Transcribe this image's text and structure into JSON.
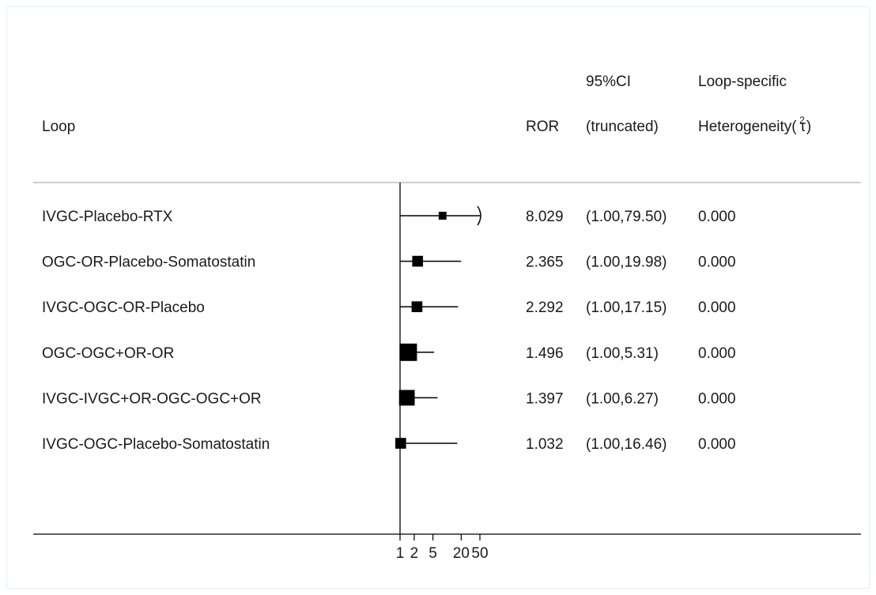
{
  "chart_data": {
    "type": "forest",
    "headers": {
      "loop": "Loop",
      "ror": "ROR",
      "ci_line1": "95%CI",
      "ci_line2": "(truncated)",
      "het_line1": "Loop-specific",
      "het_line2": "Heterogeneity(",
      "het_symbol": "τ",
      "het_sup": "2",
      "het_close": ")"
    },
    "x_axis": {
      "scale": "log",
      "ticks": [
        1,
        2,
        5,
        20,
        50
      ],
      "tick_labels": [
        "1",
        "2",
        "5",
        "20",
        "50"
      ],
      "range": [
        1,
        50
      ]
    },
    "rows": [
      {
        "loop": "IVGC-Placebo-RTX",
        "ror": 8.029,
        "ror_label": "8.029",
        "ci_low": 1.0,
        "ci_high": 79.5,
        "ci_label": "(1.00,79.50)",
        "heterogeneity": "0.000",
        "weight": 0.45,
        "arrow": true
      },
      {
        "loop": "OGC-OR-Placebo-Somatostatin",
        "ror": 2.365,
        "ror_label": "2.365",
        "ci_low": 1.0,
        "ci_high": 19.98,
        "ci_label": "(1.00,19.98)",
        "heterogeneity": "0.000",
        "weight": 0.62,
        "arrow": false
      },
      {
        "loop": "IVGC-OGC-OR-Placebo",
        "ror": 2.292,
        "ror_label": "2.292",
        "ci_low": 1.0,
        "ci_high": 17.15,
        "ci_label": "(1.00,17.15)",
        "heterogeneity": "0.000",
        "weight": 0.62,
        "arrow": false
      },
      {
        "loop": "OGC-OGC+OR-OR",
        "ror": 1.496,
        "ror_label": "1.496",
        "ci_low": 1.0,
        "ci_high": 5.31,
        "ci_label": "(1.00,5.31)",
        "heterogeneity": "0.000",
        "weight": 1.0,
        "arrow": false
      },
      {
        "loop": "IVGC-IVGC+OR-OGC-OGC+OR",
        "ror": 1.397,
        "ror_label": "1.397",
        "ci_low": 1.0,
        "ci_high": 6.27,
        "ci_label": "(1.00,6.27)",
        "heterogeneity": "0.000",
        "weight": 0.9,
        "arrow": false
      },
      {
        "loop": "IVGC-OGC-Placebo-Somatostatin",
        "ror": 1.032,
        "ror_label": "1.032",
        "ci_low": 1.0,
        "ci_high": 16.46,
        "ci_label": "(1.00,16.46)",
        "heterogeneity": "0.000",
        "weight": 0.62,
        "arrow": false
      }
    ],
    "colors": {
      "ink": "#000000",
      "text": "#1a1a1a",
      "rule": "#9e9e9e",
      "frame": "#e6f0ef"
    }
  }
}
